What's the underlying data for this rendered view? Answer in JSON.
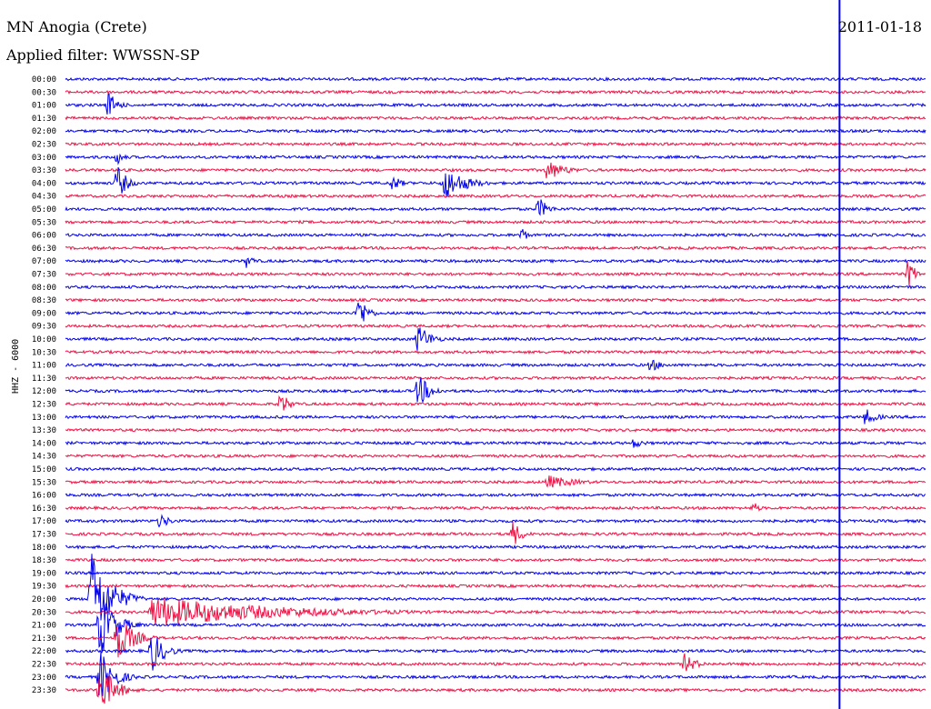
{
  "header": {
    "station": "MN Anogia (Crete)",
    "filter": "Applied filter: WWSSN-SP",
    "date": "2011-01-18"
  },
  "chart_data": {
    "type": "helicorder",
    "title": "MN Anogia (Crete)",
    "subtitle": "Applied filter: WWSSN-SP",
    "date": "2011-01-18",
    "ylabel": "HHZ - 6000",
    "xlabel": "",
    "colors": {
      "odd_rows": "#0000ee",
      "even_rows": "#ee1144"
    },
    "row_labels": [
      "00:00",
      "00:30",
      "01:00",
      "01:30",
      "02:00",
      "02:30",
      "03:00",
      "03:30",
      "04:00",
      "04:30",
      "05:00",
      "05:30",
      "06:00",
      "06:30",
      "07:00",
      "07:30",
      "08:00",
      "08:30",
      "09:00",
      "09:30",
      "10:00",
      "10:30",
      "11:00",
      "11:30",
      "12:00",
      "12:30",
      "13:00",
      "13:30",
      "14:00",
      "14:30",
      "15:00",
      "15:30",
      "16:00",
      "16:30",
      "17:00",
      "17:30",
      "18:00",
      "18:30",
      "19:00",
      "19:30",
      "20:00",
      "20:30",
      "21:00",
      "21:30",
      "22:00",
      "22:30",
      "23:00",
      "23:30"
    ],
    "noise_level": [
      1.5,
      1.5,
      1.5,
      1.5,
      1.5,
      1.5,
      1.5,
      1.5,
      1.5,
      1.5,
      1.5,
      1.5,
      1.5,
      1.5,
      1.5,
      1.5,
      1.5,
      1.5,
      1.5,
      1.5,
      1.5,
      1.5,
      1.5,
      1.5,
      1.5,
      1.5,
      1.5,
      1.5,
      1.5,
      1.5,
      1.5,
      1.5,
      1.5,
      1.5,
      1.5,
      1.5,
      1.5,
      1.5,
      1.5,
      1.5,
      1.5,
      1.5,
      1.5,
      1.5,
      1.5,
      1.5,
      1.5,
      1.5
    ],
    "events": [
      {
        "row": 2,
        "t": 0.05,
        "amp": 16,
        "dur": 0.03
      },
      {
        "row": 6,
        "t": 0.06,
        "amp": 10,
        "dur": 0.02
      },
      {
        "row": 8,
        "t": 0.06,
        "amp": 22,
        "dur": 0.03
      },
      {
        "row": 7,
        "t": 0.56,
        "amp": 12,
        "dur": 0.06
      },
      {
        "row": 8,
        "t": 0.44,
        "amp": 20,
        "dur": 0.07
      },
      {
        "row": 8,
        "t": 0.38,
        "amp": 10,
        "dur": 0.03
      },
      {
        "row": 10,
        "t": 0.55,
        "amp": 14,
        "dur": 0.03
      },
      {
        "row": 12,
        "t": 0.53,
        "amp": 10,
        "dur": 0.02
      },
      {
        "row": 14,
        "t": 0.21,
        "amp": 8,
        "dur": 0.03
      },
      {
        "row": 15,
        "t": 0.98,
        "amp": 20,
        "dur": 0.02
      },
      {
        "row": 18,
        "t": 0.34,
        "amp": 22,
        "dur": 0.03
      },
      {
        "row": 20,
        "t": 0.41,
        "amp": 18,
        "dur": 0.04
      },
      {
        "row": 24,
        "t": 0.41,
        "amp": 20,
        "dur": 0.04
      },
      {
        "row": 25,
        "t": 0.25,
        "amp": 14,
        "dur": 0.03
      },
      {
        "row": 22,
        "t": 0.68,
        "amp": 8,
        "dur": 0.04
      },
      {
        "row": 26,
        "t": 0.93,
        "amp": 10,
        "dur": 0.04
      },
      {
        "row": 28,
        "t": 0.66,
        "amp": 6,
        "dur": 0.04
      },
      {
        "row": 31,
        "t": 0.56,
        "amp": 8,
        "dur": 0.1
      },
      {
        "row": 33,
        "t": 0.8,
        "amp": 8,
        "dur": 0.02
      },
      {
        "row": 34,
        "t": 0.11,
        "amp": 10,
        "dur": 0.03
      },
      {
        "row": 35,
        "t": 0.52,
        "amp": 16,
        "dur": 0.03
      },
      {
        "row": 44,
        "t": 0.1,
        "amp": 26,
        "dur": 0.04
      },
      {
        "row": 45,
        "t": 0.72,
        "amp": 12,
        "dur": 0.04
      },
      {
        "row": 40,
        "t": 0.03,
        "amp": 60,
        "dur": 0.06
      },
      {
        "row": 41,
        "t": 0.1,
        "amp": 18,
        "dur": 0.4
      },
      {
        "row": 42,
        "t": 0.04,
        "amp": 40,
        "dur": 0.05
      },
      {
        "row": 43,
        "t": 0.06,
        "amp": 30,
        "dur": 0.05
      },
      {
        "row": 46,
        "t": 0.04,
        "amp": 30,
        "dur": 0.05
      },
      {
        "row": 47,
        "t": 0.04,
        "amp": 30,
        "dur": 0.05
      }
    ],
    "vertical_spike_t": 0.9
  }
}
